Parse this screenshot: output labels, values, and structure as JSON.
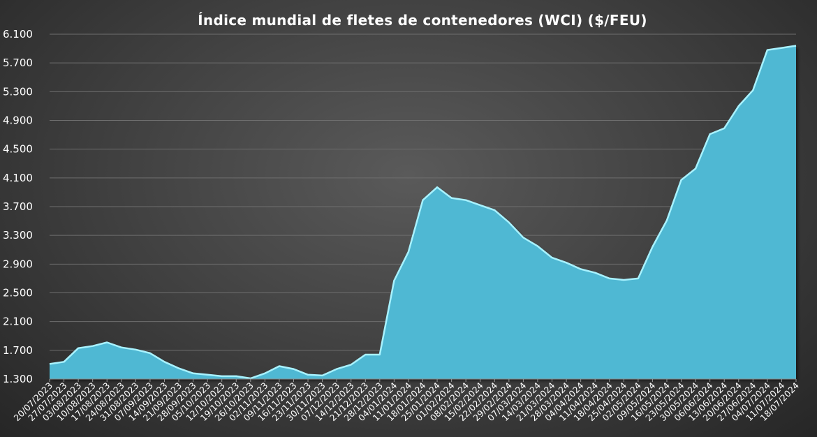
{
  "chart_data": {
    "type": "area",
    "title": "Índice mundial de fletes de contenedores (WCI) ($/FEU)",
    "xlabel": "",
    "ylabel": "",
    "ylim": [
      1300,
      6100
    ],
    "yticks": [
      "1.300",
      "1.700",
      "2.100",
      "2.500",
      "2.900",
      "3.300",
      "3.700",
      "4.100",
      "4.500",
      "4.900",
      "5.300",
      "5.700",
      "6.100"
    ],
    "ytick_values": [
      1300,
      1700,
      2100,
      2500,
      2900,
      3300,
      3700,
      4100,
      4500,
      4900,
      5300,
      5700,
      6100
    ],
    "grid": true,
    "legend": "none",
    "colors": {
      "fill": "#4fb8d3",
      "line": "#a8f2ff",
      "grid": "#6e6e6e",
      "text": "#ffffff"
    },
    "categories": [
      "20/07/2023",
      "27/07/2023",
      "03/08/2023",
      "10/08/2023",
      "17/08/2023",
      "24/08/2023",
      "31/08/2023",
      "07/09/2023",
      "14/09/2023",
      "21/09/2023",
      "28/09/2023",
      "05/10/2023",
      "12/10/2023",
      "19/10/2023",
      "26/10/2023",
      "02/11/2023",
      "09/11/2023",
      "16/11/2023",
      "23/11/2023",
      "30/11/2023",
      "07/12/2023",
      "14/12/2023",
      "21/12/2023",
      "28/12/2023",
      "04/01/2024",
      "11/01/2024",
      "18/01/2024",
      "25/01/2024",
      "01/02/2024",
      "08/02/2024",
      "15/02/2024",
      "22/02/2024",
      "29/02/2024",
      "07/03/2024",
      "14/03/2024",
      "21/03/2024",
      "28/03/2024",
      "04/04/2024",
      "11/04/2024",
      "18/04/2024",
      "25/04/2024",
      "02/05/2024",
      "09/05/2024",
      "16/05/2024",
      "23/05/2024",
      "30/05/2024",
      "06/06/2024",
      "13/06/2024",
      "20/06/2024",
      "27/06/2024",
      "04/07/2024",
      "11/07/2024",
      "18/07/2024"
    ],
    "series": [
      {
        "values": [
          1510,
          1540,
          1730,
          1760,
          1810,
          1740,
          1710,
          1660,
          1540,
          1450,
          1380,
          1360,
          1340,
          1340,
          1310,
          1380,
          1480,
          1440,
          1360,
          1350,
          1440,
          1500,
          1640,
          1640,
          2670,
          3070,
          3790,
          3970,
          3820,
          3790,
          3720,
          3650,
          3480,
          3270,
          3150,
          2990,
          2920,
          2830,
          2780,
          2700,
          2680,
          2700,
          3140,
          3510,
          4070,
          4230,
          4710,
          4790,
          5100,
          5320,
          5880,
          5910,
          5940
        ]
      }
    ]
  }
}
